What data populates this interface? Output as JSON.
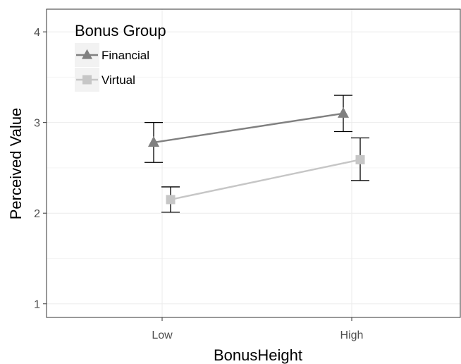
{
  "chart_data": {
    "type": "line",
    "xlabel": "BonusHeight",
    "ylabel": "Perceived Value",
    "categories": [
      "Low",
      "High"
    ],
    "ylim": [
      0.85,
      4.25
    ],
    "yticks": [
      "1",
      "2",
      "3",
      "4"
    ],
    "ytick_values": [
      1,
      2,
      3,
      4
    ],
    "grid": true,
    "legend": {
      "title": "Bonus Group",
      "position": "top-left"
    },
    "series": [
      {
        "name": "Financial",
        "marker": "triangle",
        "color": "#808080",
        "values": [
          2.78,
          3.1
        ],
        "error_low": [
          2.56,
          2.9
        ],
        "error_high": [
          3.0,
          3.3
        ]
      },
      {
        "name": "Virtual",
        "marker": "square",
        "color": "#c6c6c6",
        "values": [
          2.15,
          2.59
        ],
        "error_low": [
          2.01,
          2.36
        ],
        "error_high": [
          2.29,
          2.83
        ]
      }
    ]
  }
}
